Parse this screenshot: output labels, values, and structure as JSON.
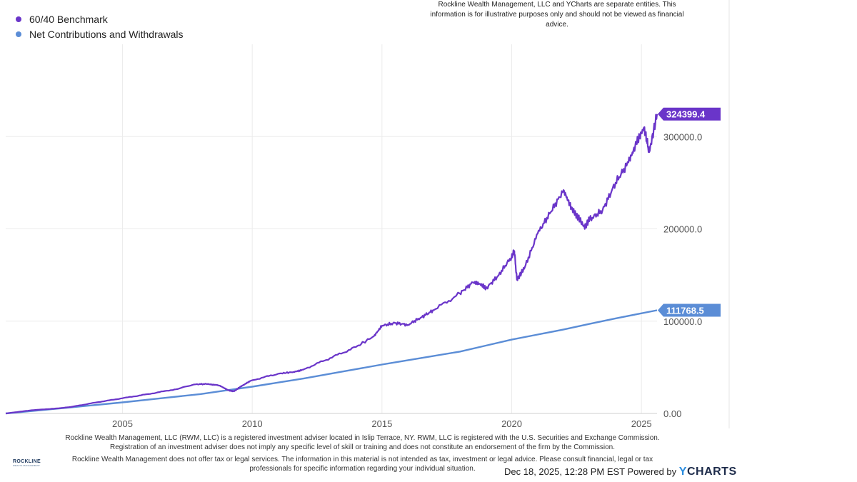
{
  "legend": [
    {
      "label": "60/40 Benchmark",
      "color": "#6a35c9"
    },
    {
      "label": "Net Contributions and Withdrawals",
      "color": "#5b8dd6"
    }
  ],
  "disclaimer_top": "Rockline Wealth Management, LLC and YCharts are separate entities. This information is for illustrative purposes only and should not be viewed as financial advice.",
  "footnote_1": "Rockline Wealth Management, LLC (RWM, LLC) is a registered investment adviser located in Islip Terrace, NY. RWM, LLC is registered with the U.S. Securities and Exchange Commission. Registration of an investment adviser does not imply any specific level of skill or training and does not constitute an endorsement of the firm by the Commission.",
  "footnote_2": "Rockline Wealth Management does not offer tax or legal services. The information in this material is not intended as tax, investment or legal advice. Please consult financial, legal or tax professionals for specific information regarding your individual situation.",
  "logo": {
    "name": "ROCKLINE",
    "sub": "WEALTH MANAGEMENT"
  },
  "timestamp": "Dec 18, 2025, 12:28 PM EST",
  "powered_by": "Powered by",
  "brand": {
    "y": "Y",
    "rest": "CHARTS"
  },
  "chart_data": {
    "type": "line",
    "x_tick_labels": [
      "2005",
      "2010",
      "2015",
      "2020",
      "2025"
    ],
    "x_ticks": [
      2005,
      2010,
      2015,
      2020,
      2025
    ],
    "xlim": [
      2000.5,
      2025.6
    ],
    "y_tick_labels": [
      "0.00",
      "100000.0",
      "200000.0",
      "300000.0"
    ],
    "y_ticks": [
      0,
      100000,
      200000,
      300000
    ],
    "ylim": [
      0,
      400000
    ],
    "grid": true,
    "legend_position": "top-left",
    "series": [
      {
        "name": "60/40 Benchmark",
        "color": "#6a35c9",
        "last_value_label": "324399.4",
        "points": [
          [
            2000.5,
            0
          ],
          [
            2001.5,
            3500
          ],
          [
            2002.5,
            5500
          ],
          [
            2003.0,
            7000
          ],
          [
            2004.0,
            12000
          ],
          [
            2005.0,
            16500
          ],
          [
            2006.0,
            21000
          ],
          [
            2007.0,
            26000
          ],
          [
            2007.8,
            31500
          ],
          [
            2008.3,
            32000
          ],
          [
            2008.7,
            30500
          ],
          [
            2009.1,
            25000
          ],
          [
            2009.3,
            24000
          ],
          [
            2009.6,
            30000
          ],
          [
            2010.0,
            36000
          ],
          [
            2011.0,
            43000
          ],
          [
            2011.6,
            45000
          ],
          [
            2012.0,
            48000
          ],
          [
            2013.0,
            60000
          ],
          [
            2014.0,
            72000
          ],
          [
            2014.7,
            84000
          ],
          [
            2015.0,
            95000
          ],
          [
            2015.5,
            98000
          ],
          [
            2016.0,
            96000
          ],
          [
            2016.5,
            104000
          ],
          [
            2017.0,
            112000
          ],
          [
            2018.0,
            130000
          ],
          [
            2018.5,
            142000
          ],
          [
            2018.9,
            138000
          ],
          [
            2019.0,
            135000
          ],
          [
            2019.5,
            150000
          ],
          [
            2020.0,
            170000
          ],
          [
            2020.1,
            176000
          ],
          [
            2020.2,
            145000
          ],
          [
            2020.5,
            158000
          ],
          [
            2021.0,
            195000
          ],
          [
            2021.5,
            218000
          ],
          [
            2022.0,
            242000
          ],
          [
            2022.3,
            222000
          ],
          [
            2022.5,
            215000
          ],
          [
            2022.8,
            202000
          ],
          [
            2023.0,
            210000
          ],
          [
            2023.5,
            220000
          ],
          [
            2024.0,
            250000
          ],
          [
            2024.5,
            272000
          ],
          [
            2024.8,
            292000
          ],
          [
            2025.1,
            310000
          ],
          [
            2025.3,
            283000
          ],
          [
            2025.6,
            324399.4
          ]
        ]
      },
      {
        "name": "Net Contributions and Withdrawals",
        "color": "#5b8dd6",
        "last_value_label": "111768.5",
        "points": [
          [
            2000.5,
            0
          ],
          [
            2003.0,
            6500
          ],
          [
            2005.0,
            12000
          ],
          [
            2008.0,
            21000
          ],
          [
            2010.0,
            29000
          ],
          [
            2012.0,
            38000
          ],
          [
            2015.0,
            53000
          ],
          [
            2018.0,
            67000
          ],
          [
            2020.0,
            80000
          ],
          [
            2022.0,
            91000
          ],
          [
            2024.0,
            103000
          ],
          [
            2025.6,
            111768.5
          ]
        ]
      }
    ]
  }
}
